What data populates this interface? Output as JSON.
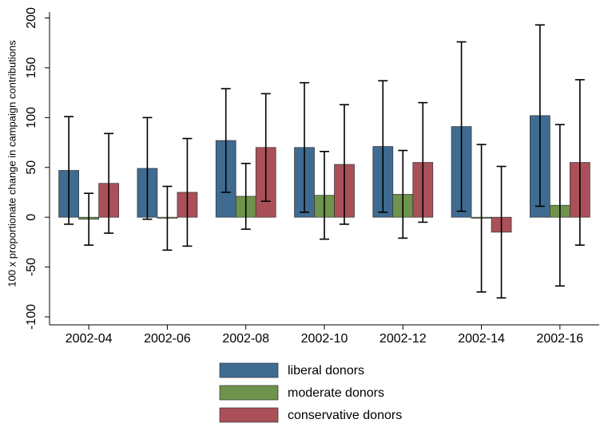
{
  "chart_data": {
    "type": "bar",
    "y_label": "100 x proportionate change in campaign contributions",
    "categories": [
      "2002-04",
      "2002-06",
      "2002-08",
      "2002-10",
      "2002-12",
      "2002-14",
      "2002-16"
    ],
    "series": [
      {
        "name": "liberal donors",
        "color": "#3f6b91",
        "values": [
          47,
          49,
          77,
          70,
          71,
          91,
          102
        ],
        "errors": [
          54,
          51,
          52,
          65,
          66,
          85,
          91
        ]
      },
      {
        "name": "moderate donors",
        "color": "#6f924c",
        "values": [
          -2,
          -1,
          21,
          22,
          23,
          -1,
          12
        ],
        "errors": [
          26,
          32,
          33,
          44,
          44,
          74,
          81
        ]
      },
      {
        "name": "conservative donors",
        "color": "#aa5059",
        "values": [
          34,
          25,
          70,
          53,
          55,
          -15,
          55
        ],
        "errors": [
          50,
          54,
          54,
          60,
          60,
          66,
          83
        ]
      }
    ],
    "ylim": [
      -108,
      206
    ],
    "yticks": [
      -100,
      -50,
      0,
      50,
      100,
      150,
      200
    ],
    "grid": false
  }
}
